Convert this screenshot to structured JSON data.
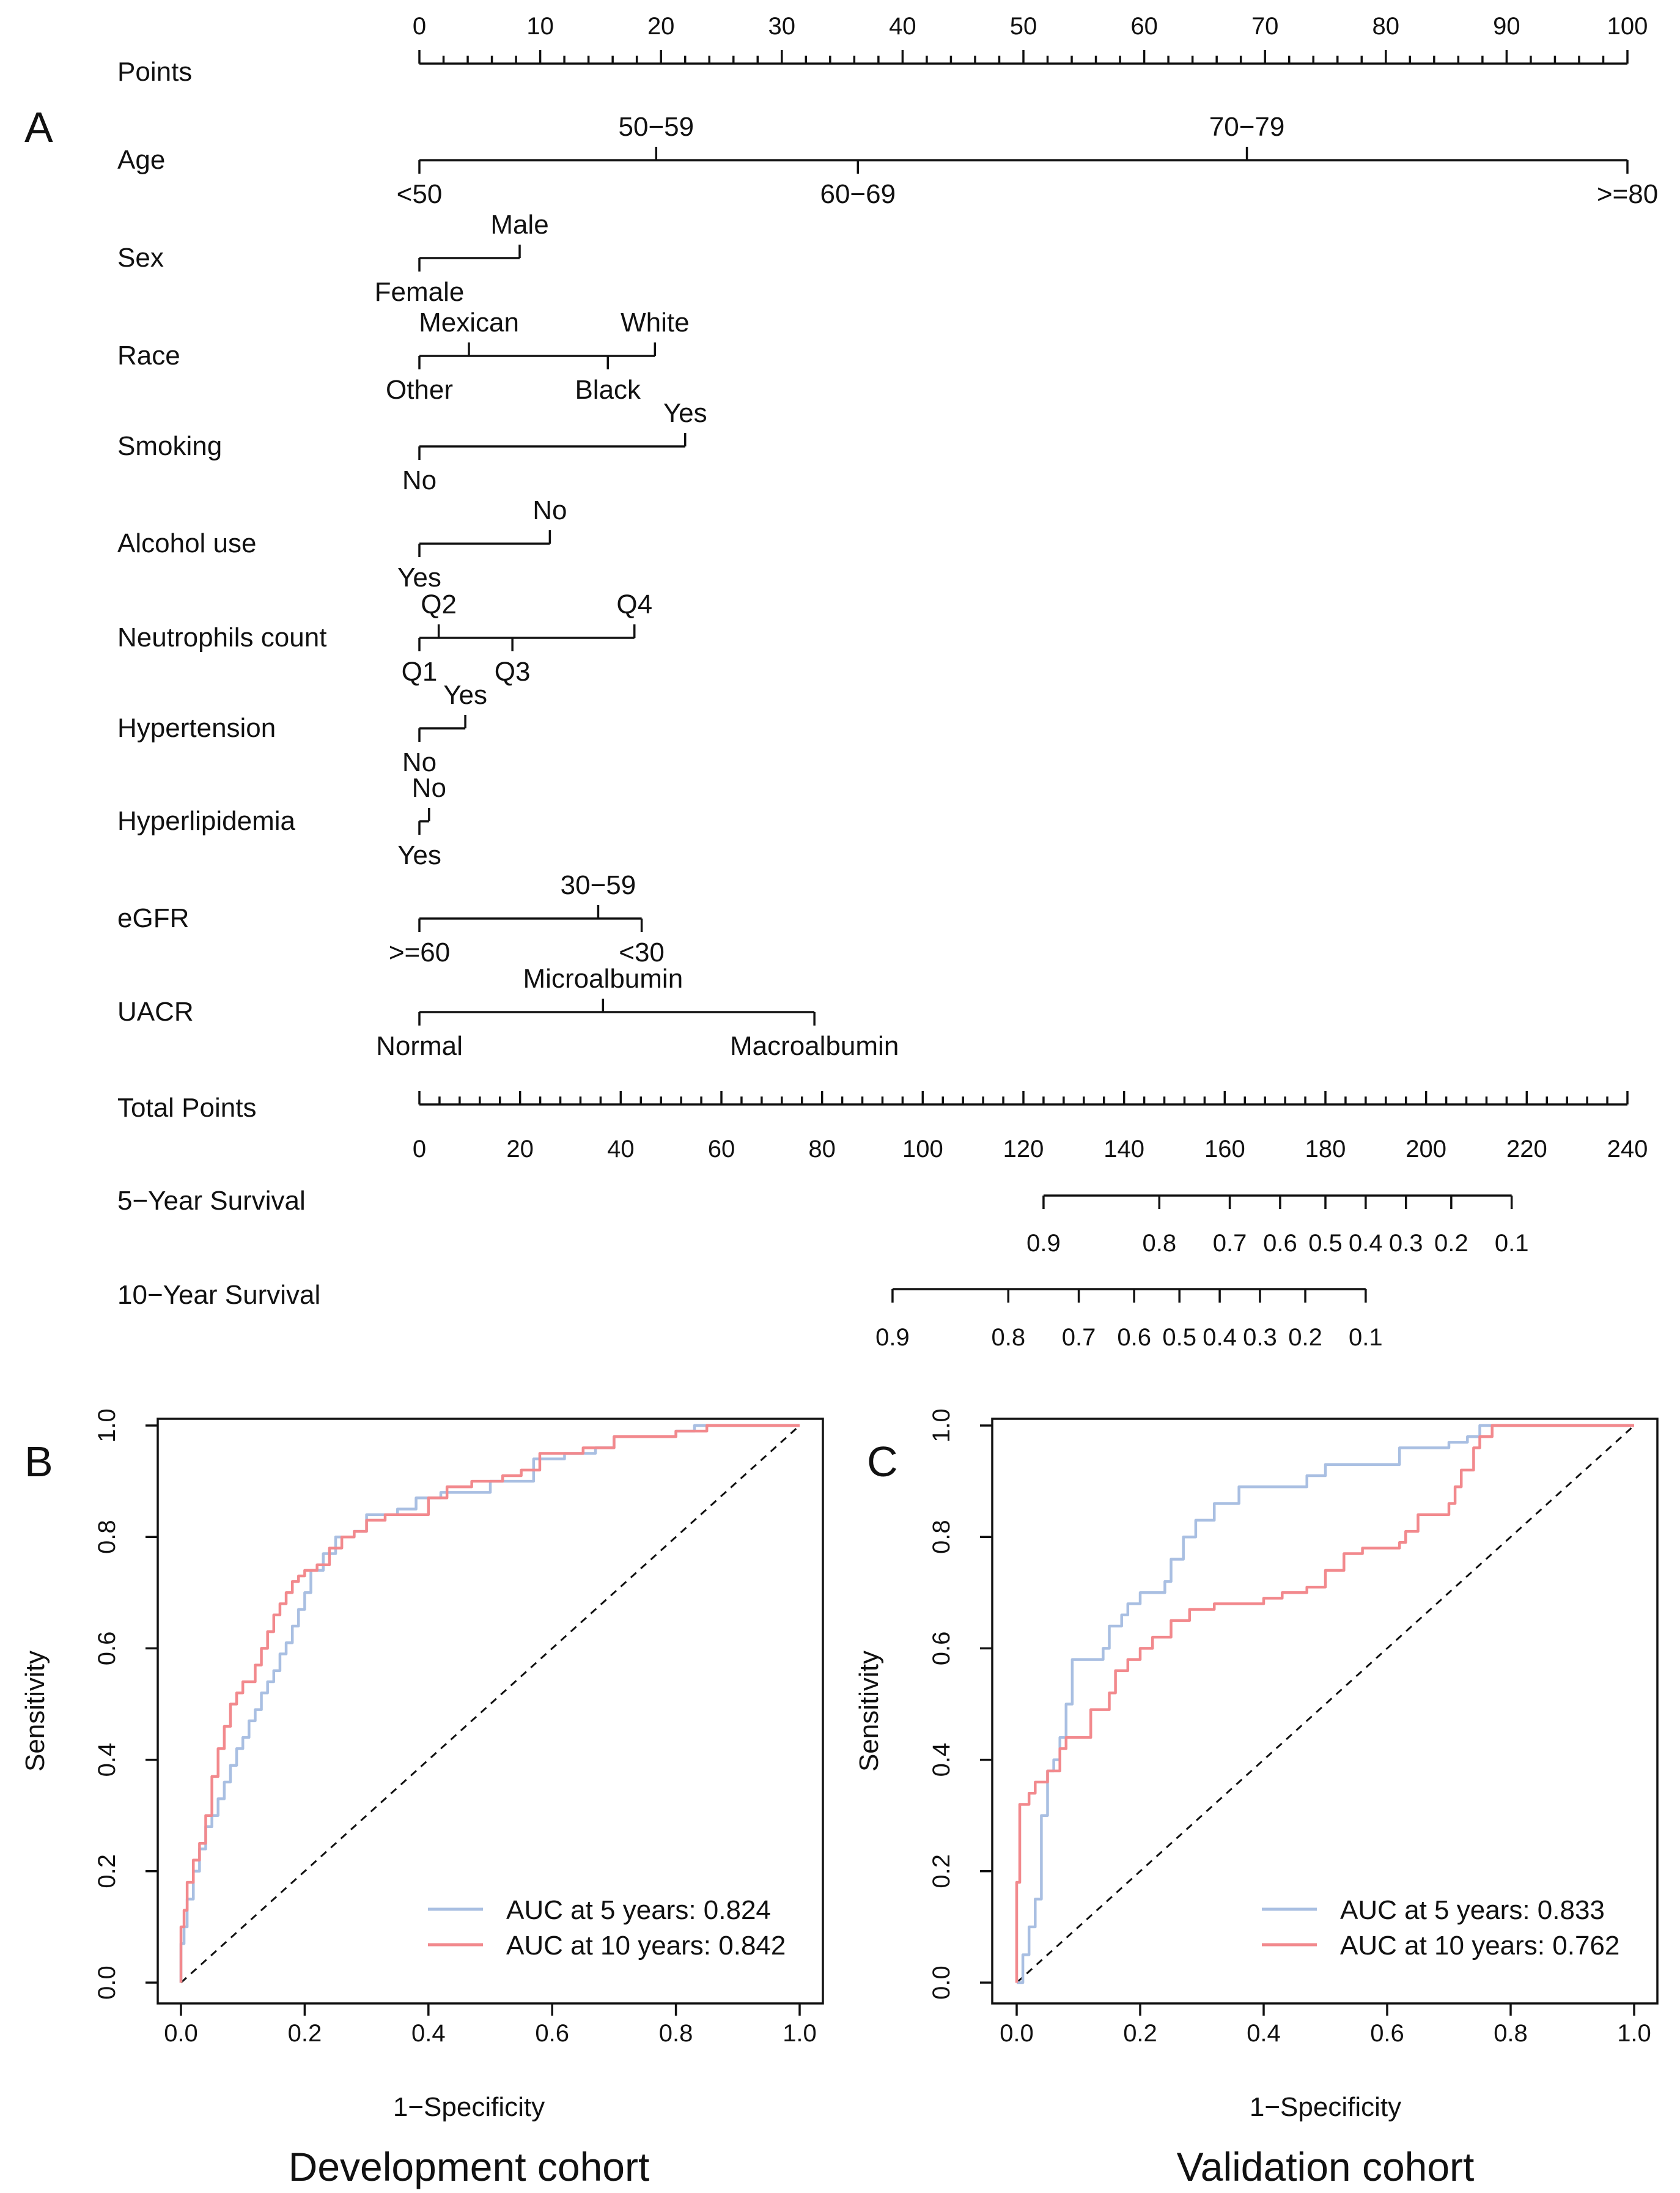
{
  "nomogram": {
    "panel_label": "A",
    "points": {
      "label": "Points",
      "ticks": [
        "0",
        "10",
        "20",
        "30",
        "40",
        "50",
        "60",
        "70",
        "80",
        "90",
        "100"
      ]
    },
    "variables": [
      {
        "name": "Age",
        "levels": [
          {
            "label": "<50",
            "points": 0,
            "pos": "below"
          },
          {
            "label": "50−59",
            "points": 19.6,
            "pos": "above"
          },
          {
            "label": "60−69",
            "points": 36.3,
            "pos": "below"
          },
          {
            "label": "70−79",
            "points": 68.5,
            "pos": "above"
          },
          {
            "label": ">=80",
            "points": 100,
            "pos": "below"
          }
        ]
      },
      {
        "name": "Sex",
        "levels": [
          {
            "label": "Female",
            "points": 0,
            "pos": "below"
          },
          {
            "label": "Male",
            "points": 8.3,
            "pos": "above"
          }
        ]
      },
      {
        "name": "Race",
        "levels": [
          {
            "label": "Other",
            "points": 0,
            "pos": "below"
          },
          {
            "label": "Mexican",
            "points": 4.1,
            "pos": "above"
          },
          {
            "label": "Black",
            "points": 15.6,
            "pos": "below"
          },
          {
            "label": "White",
            "points": 19.5,
            "pos": "above"
          }
        ]
      },
      {
        "name": "Smoking",
        "levels": [
          {
            "label": "No",
            "points": 0,
            "pos": "below"
          },
          {
            "label": "Yes",
            "points": 22.0,
            "pos": "above"
          }
        ]
      },
      {
        "name": "Alcohol use",
        "levels": [
          {
            "label": "Yes",
            "points": 0,
            "pos": "below"
          },
          {
            "label": "No",
            "points": 10.8,
            "pos": "above"
          }
        ]
      },
      {
        "name": "Neutrophils count",
        "levels": [
          {
            "label": "Q1",
            "points": 0,
            "pos": "below"
          },
          {
            "label": "Q2",
            "points": 1.6,
            "pos": "above"
          },
          {
            "label": "Q3",
            "points": 7.7,
            "pos": "below"
          },
          {
            "label": "Q4",
            "points": 17.8,
            "pos": "above"
          }
        ]
      },
      {
        "name": "Hypertension",
        "levels": [
          {
            "label": "No",
            "points": 0,
            "pos": "below"
          },
          {
            "label": "Yes",
            "points": 3.8,
            "pos": "above"
          }
        ]
      },
      {
        "name": "Hyperlipidemia",
        "levels": [
          {
            "label": "Yes",
            "points": 0,
            "pos": "below"
          },
          {
            "label": "No",
            "points": 0.8,
            "pos": "above"
          }
        ]
      },
      {
        "name": "eGFR",
        "levels": [
          {
            "label": ">=60",
            "points": 0,
            "pos": "below"
          },
          {
            "label": "30−59",
            "points": 14.8,
            "pos": "above"
          },
          {
            "label": "<30",
            "points": 18.4,
            "pos": "below"
          }
        ]
      },
      {
        "name": "UACR",
        "levels": [
          {
            "label": "Normal",
            "points": 0,
            "pos": "below"
          },
          {
            "label": "Microalbumin",
            "points": 15.2,
            "pos": "above"
          },
          {
            "label": "Macroalbumin",
            "points": 32.7,
            "pos": "below"
          }
        ]
      }
    ],
    "total_points": {
      "label": "Total Points",
      "ticks": [
        "0",
        "20",
        "40",
        "60",
        "80",
        "100",
        "120",
        "140",
        "160",
        "180",
        "200",
        "220",
        "240"
      ]
    },
    "survival": [
      {
        "label": "5−Year Survival",
        "range": [
          124,
          217
        ],
        "ticks": [
          {
            "label": "0.9",
            "total": 124
          },
          {
            "label": "0.8",
            "total": 147
          },
          {
            "label": "0.7",
            "total": 161
          },
          {
            "label": "0.6",
            "total": 171
          },
          {
            "label": "0.5",
            "total": 180
          },
          {
            "label": "0.4",
            "total": 188
          },
          {
            "label": "0.3",
            "total": 196
          },
          {
            "label": "0.2",
            "total": 205
          },
          {
            "label": "0.1",
            "total": 217
          }
        ]
      },
      {
        "label": "10−Year Survival",
        "range": [
          94,
          188
        ],
        "ticks": [
          {
            "label": "0.9",
            "total": 94
          },
          {
            "label": "0.8",
            "total": 117
          },
          {
            "label": "0.7",
            "total": 131
          },
          {
            "label": "0.6",
            "total": 142
          },
          {
            "label": "0.5",
            "total": 151
          },
          {
            "label": "0.4",
            "total": 159
          },
          {
            "label": "0.3",
            "total": 167
          },
          {
            "label": "0.2",
            "total": 176
          },
          {
            "label": "0.1",
            "total": 188
          }
        ]
      }
    ]
  },
  "chart_data": [
    {
      "type": "line",
      "panel_label": "B",
      "title": "Development cohort",
      "xlabel": "1−Specificity",
      "ylabel": "Sensitivity",
      "xlim": [
        0,
        1
      ],
      "ylim": [
        0,
        1
      ],
      "ticks": [
        "0.0",
        "0.2",
        "0.4",
        "0.6",
        "0.8",
        "1.0"
      ],
      "series": [
        {
          "name": "AUC at 5 years: 0.824",
          "color": "#a9bfe2",
          "points": [
            [
              0,
              0
            ],
            [
              0,
              0.07
            ],
            [
              0.005,
              0.1
            ],
            [
              0.01,
              0.15
            ],
            [
              0.02,
              0.2
            ],
            [
              0.03,
              0.24
            ],
            [
              0.04,
              0.28
            ],
            [
              0.05,
              0.3
            ],
            [
              0.06,
              0.33
            ],
            [
              0.07,
              0.36
            ],
            [
              0.08,
              0.39
            ],
            [
              0.09,
              0.42
            ],
            [
              0.1,
              0.44
            ],
            [
              0.11,
              0.47
            ],
            [
              0.12,
              0.49
            ],
            [
              0.13,
              0.52
            ],
            [
              0.14,
              0.54
            ],
            [
              0.15,
              0.56
            ],
            [
              0.16,
              0.59
            ],
            [
              0.17,
              0.61
            ],
            [
              0.18,
              0.64
            ],
            [
              0.19,
              0.67
            ],
            [
              0.2,
              0.7
            ],
            [
              0.21,
              0.74
            ],
            [
              0.23,
              0.77
            ],
            [
              0.25,
              0.8
            ],
            [
              0.28,
              0.81
            ],
            [
              0.3,
              0.84
            ],
            [
              0.35,
              0.85
            ],
            [
              0.38,
              0.87
            ],
            [
              0.42,
              0.88
            ],
            [
              0.47,
              0.88
            ],
            [
              0.5,
              0.9
            ],
            [
              0.55,
              0.9
            ],
            [
              0.57,
              0.94
            ],
            [
              0.62,
              0.95
            ],
            [
              0.67,
              0.96
            ],
            [
              0.7,
              0.98
            ],
            [
              0.8,
              0.99
            ],
            [
              0.83,
              1.0
            ],
            [
              1.0,
              1.0
            ]
          ]
        },
        {
          "name": "AUC at 10 years: 0.842",
          "color": "#f2898d",
          "points": [
            [
              0,
              0
            ],
            [
              0,
              0.1
            ],
            [
              0.005,
              0.13
            ],
            [
              0.01,
              0.18
            ],
            [
              0.02,
              0.22
            ],
            [
              0.03,
              0.25
            ],
            [
              0.04,
              0.3
            ],
            [
              0.05,
              0.37
            ],
            [
              0.06,
              0.42
            ],
            [
              0.07,
              0.46
            ],
            [
              0.08,
              0.5
            ],
            [
              0.09,
              0.52
            ],
            [
              0.1,
              0.54
            ],
            [
              0.12,
              0.57
            ],
            [
              0.13,
              0.6
            ],
            [
              0.14,
              0.63
            ],
            [
              0.15,
              0.66
            ],
            [
              0.16,
              0.68
            ],
            [
              0.17,
              0.7
            ],
            [
              0.18,
              0.72
            ],
            [
              0.19,
              0.73
            ],
            [
              0.2,
              0.74
            ],
            [
              0.22,
              0.75
            ],
            [
              0.24,
              0.78
            ],
            [
              0.26,
              0.8
            ],
            [
              0.28,
              0.81
            ],
            [
              0.3,
              0.83
            ],
            [
              0.33,
              0.84
            ],
            [
              0.37,
              0.84
            ],
            [
              0.4,
              0.87
            ],
            [
              0.43,
              0.89
            ],
            [
              0.47,
              0.9
            ],
            [
              0.52,
              0.91
            ],
            [
              0.55,
              0.92
            ],
            [
              0.58,
              0.95
            ],
            [
              0.65,
              0.96
            ],
            [
              0.7,
              0.98
            ],
            [
              0.8,
              0.99
            ],
            [
              0.85,
              1.0
            ],
            [
              1.0,
              1.0
            ]
          ]
        }
      ]
    },
    {
      "type": "line",
      "panel_label": "C",
      "title": "Validation cohort",
      "xlabel": "1−Specificity",
      "ylabel": "Sensitivity",
      "xlim": [
        0,
        1
      ],
      "ylim": [
        0,
        1
      ],
      "ticks": [
        "0.0",
        "0.2",
        "0.4",
        "0.6",
        "0.8",
        "1.0"
      ],
      "series": [
        {
          "name": "AUC at 5 years: 0.833",
          "color": "#a9bfe2",
          "points": [
            [
              0,
              0
            ],
            [
              0.01,
              0.05
            ],
            [
              0.02,
              0.1
            ],
            [
              0.03,
              0.15
            ],
            [
              0.04,
              0.3
            ],
            [
              0.05,
              0.38
            ],
            [
              0.06,
              0.4
            ],
            [
              0.07,
              0.44
            ],
            [
              0.08,
              0.5
            ],
            [
              0.09,
              0.58
            ],
            [
              0.1,
              0.58
            ],
            [
              0.14,
              0.6
            ],
            [
              0.15,
              0.64
            ],
            [
              0.17,
              0.66
            ],
            [
              0.18,
              0.68
            ],
            [
              0.2,
              0.7
            ],
            [
              0.24,
              0.72
            ],
            [
              0.25,
              0.76
            ],
            [
              0.27,
              0.8
            ],
            [
              0.29,
              0.83
            ],
            [
              0.32,
              0.86
            ],
            [
              0.35,
              0.86
            ],
            [
              0.36,
              0.89
            ],
            [
              0.45,
              0.89
            ],
            [
              0.47,
              0.91
            ],
            [
              0.5,
              0.93
            ],
            [
              0.6,
              0.93
            ],
            [
              0.62,
              0.96
            ],
            [
              0.7,
              0.97
            ],
            [
              0.73,
              0.98
            ],
            [
              0.75,
              1.0
            ],
            [
              1.0,
              1.0
            ]
          ]
        },
        {
          "name": "AUC at 10 years: 0.762",
          "color": "#f2898d",
          "points": [
            [
              0,
              0
            ],
            [
              0,
              0.18
            ],
            [
              0.005,
              0.32
            ],
            [
              0.02,
              0.34
            ],
            [
              0.03,
              0.36
            ],
            [
              0.05,
              0.38
            ],
            [
              0.07,
              0.42
            ],
            [
              0.08,
              0.44
            ],
            [
              0.11,
              0.44
            ],
            [
              0.12,
              0.49
            ],
            [
              0.15,
              0.52
            ],
            [
              0.16,
              0.56
            ],
            [
              0.18,
              0.58
            ],
            [
              0.2,
              0.6
            ],
            [
              0.22,
              0.62
            ],
            [
              0.25,
              0.65
            ],
            [
              0.28,
              0.67
            ],
            [
              0.32,
              0.68
            ],
            [
              0.4,
              0.69
            ],
            [
              0.43,
              0.7
            ],
            [
              0.47,
              0.71
            ],
            [
              0.5,
              0.74
            ],
            [
              0.53,
              0.77
            ],
            [
              0.56,
              0.78
            ],
            [
              0.62,
              0.79
            ],
            [
              0.63,
              0.81
            ],
            [
              0.65,
              0.84
            ],
            [
              0.68,
              0.84
            ],
            [
              0.7,
              0.86
            ],
            [
              0.71,
              0.89
            ],
            [
              0.72,
              0.92
            ],
            [
              0.74,
              0.96
            ],
            [
              0.75,
              0.98
            ],
            [
              0.77,
              1.0
            ],
            [
              1.0,
              1.0
            ]
          ]
        }
      ]
    }
  ]
}
